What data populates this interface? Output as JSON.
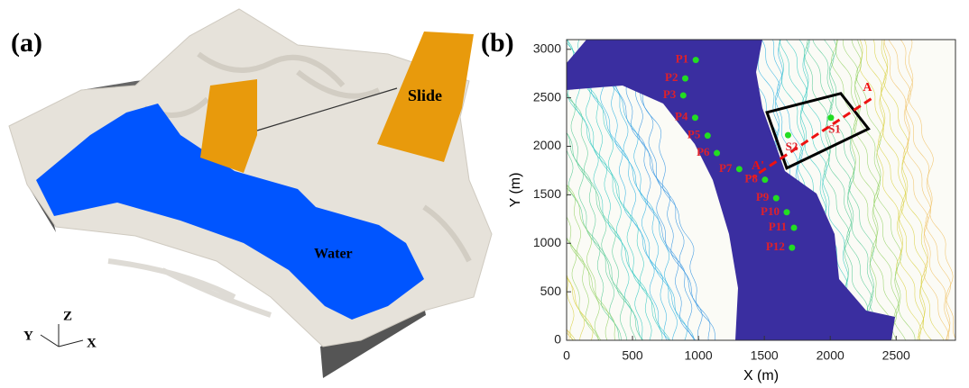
{
  "panel_a": {
    "label": "(a)",
    "slide_label": "Slide",
    "water_label": "Water",
    "axis_x": "X",
    "axis_y": "Y",
    "axis_z": "Z"
  },
  "chart_data": {
    "type": "scatter",
    "label": "(b)",
    "xlabel": "X (m)",
    "ylabel": "Y (m)",
    "xlim": [
      0,
      2950
    ],
    "ylim": [
      0,
      3100
    ],
    "xticks": [
      0,
      500,
      1000,
      1500,
      2000,
      2500
    ],
    "yticks": [
      0,
      500,
      1000,
      1500,
      2000,
      2500,
      3000
    ],
    "point_labels": [
      "P1",
      "P2",
      "P3",
      "P4",
      "P5",
      "P6",
      "P7",
      "P8",
      "P9",
      "P10",
      "P11",
      "P12"
    ],
    "x": [
      980,
      900,
      885,
      975,
      1070,
      1140,
      1310,
      1505,
      1590,
      1670,
      1725,
      1710
    ],
    "values": [
      2890,
      2700,
      2525,
      2295,
      2110,
      1930,
      1765,
      1655,
      1465,
      1320,
      1160,
      955
    ],
    "point_color": "#22dd22",
    "label_color": "#e0202a",
    "slide_points": {
      "labels": [
        "S1",
        "S2"
      ],
      "x": [
        2005,
        1680
      ],
      "y": [
        2295,
        2115
      ]
    },
    "slide_outline": {
      "x": [
        1520,
        2080,
        2290,
        1670
      ],
      "y": [
        2350,
        2545,
        2180,
        1775
      ],
      "color": "#000000"
    },
    "section": {
      "labels": [
        "A",
        "A'"
      ],
      "x": [
        2310,
        1410
      ],
      "y": [
        2490,
        1680
      ],
      "color": "#ee1111"
    }
  }
}
